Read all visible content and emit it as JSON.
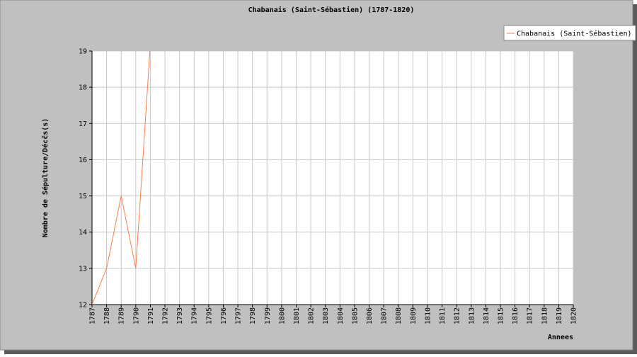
{
  "chart_data": {
    "type": "line",
    "title": "Chabanais (Saint-Sébastien) (1787-1820)",
    "x_label": "Annees",
    "y_label": "Nombre de Sépulture/Décčs(s)",
    "categories": [
      "1787",
      "1788",
      "1789",
      "1790",
      "1791",
      "1792",
      "1793",
      "1794",
      "1795",
      "1796",
      "1797",
      "1798",
      "1799",
      "1800",
      "1801",
      "1802",
      "1803",
      "1804",
      "1805",
      "1806",
      "1807",
      "1808",
      "1809",
      "1810",
      "1811",
      "1812",
      "1813",
      "1814",
      "1815",
      "1816",
      "1817",
      "1818",
      "1819",
      "1820"
    ],
    "series": [
      {
        "name": "Chabanais (Saint-Sébastien)",
        "color": "#ff7f50",
        "values": [
          12,
          13,
          15,
          13,
          19.2,
          null,
          null,
          null,
          null,
          null,
          null,
          null,
          null,
          null,
          null,
          null,
          null,
          null,
          null,
          null,
          null,
          null,
          null,
          null,
          null,
          null,
          null,
          null,
          null,
          null,
          null,
          null,
          null,
          null
        ]
      }
    ],
    "ylim": [
      12,
      19
    ],
    "yticks": [
      12,
      13,
      14,
      15,
      16,
      17,
      18,
      19
    ],
    "grid": true,
    "legend": "top-right"
  }
}
